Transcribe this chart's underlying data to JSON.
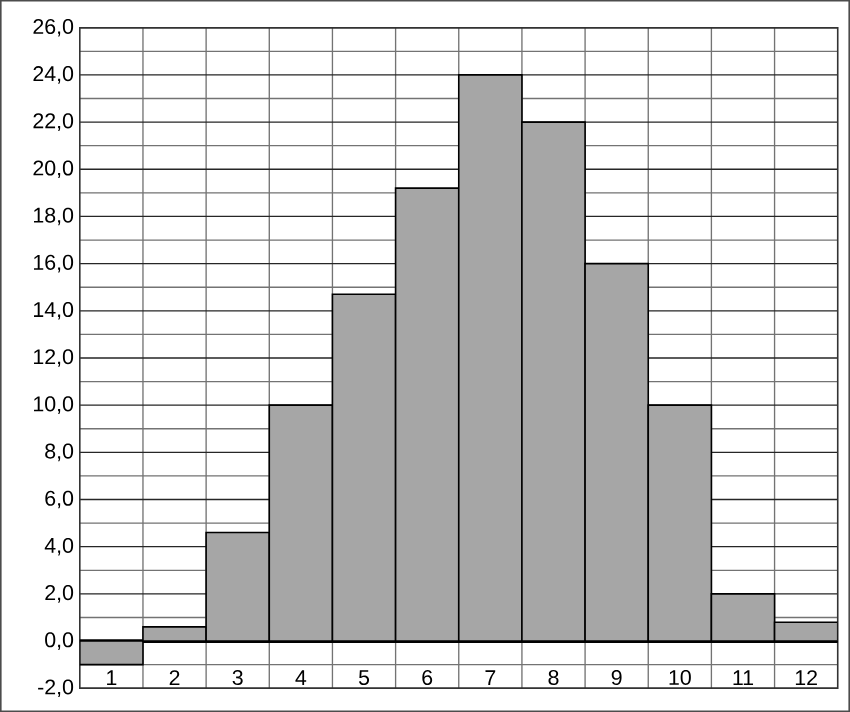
{
  "chart_data": {
    "type": "bar",
    "categories": [
      "1",
      "2",
      "3",
      "4",
      "5",
      "6",
      "7",
      "8",
      "9",
      "10",
      "11",
      "12"
    ],
    "values": [
      -1.0,
      0.6,
      4.6,
      10.0,
      14.7,
      19.2,
      24.0,
      22.0,
      16.0,
      10.0,
      2.0,
      0.8
    ],
    "color": "#a6a6a6",
    "ylim": [
      -2,
      26
    ],
    "yticks": [
      {
        "value": -2,
        "label": "-2,0"
      },
      {
        "value": 0,
        "label": "0,0"
      },
      {
        "value": 2,
        "label": "2,0"
      },
      {
        "value": 4,
        "label": "4,0"
      },
      {
        "value": 6,
        "label": "6,0"
      },
      {
        "value": 8,
        "label": "8,0"
      },
      {
        "value": 10,
        "label": "10,0"
      },
      {
        "value": 12,
        "label": "12,0"
      },
      {
        "value": 14,
        "label": "14,0"
      },
      {
        "value": 16,
        "label": "16,0"
      },
      {
        "value": 18,
        "label": "18,0"
      },
      {
        "value": 20,
        "label": "20,0"
      },
      {
        "value": 22,
        "label": "22,0"
      },
      {
        "value": 24,
        "label": "24,0"
      },
      {
        "value": 26,
        "label": "26,0"
      }
    ],
    "grid": true
  }
}
